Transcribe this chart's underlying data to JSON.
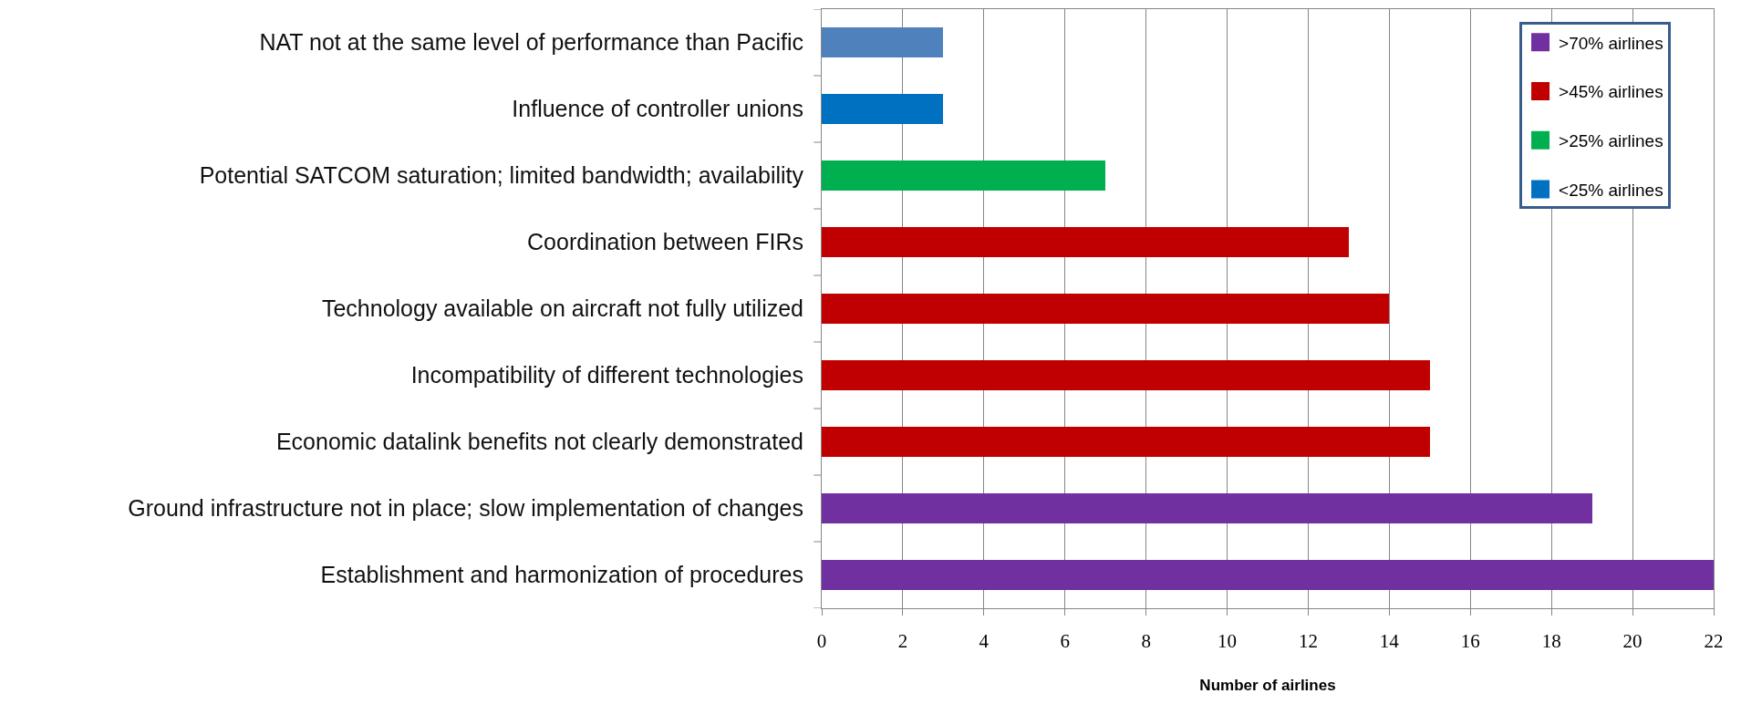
{
  "chart_data": {
    "type": "bar",
    "orientation": "horizontal",
    "stacked": true,
    "categories": [
      "NAT not at the same level of performance than Pacific",
      "Influence of controller unions",
      "Potential SATCOM saturation; limited bandwidth; availability",
      "Coordination between FIRs",
      "Technology available on aircraft not fully utilized",
      "Incompatibility of different technologies",
      "Economic datalink benefits not clearly demonstrated",
      "Ground infrastructure not in place; slow implementation of changes",
      "Establishment and harmonization of procedures"
    ],
    "series": [
      {
        "name": ">70% airlines",
        "color": "#7030a0",
        "values": [
          null,
          null,
          null,
          null,
          null,
          null,
          null,
          19,
          22
        ]
      },
      {
        "name": ">45% airlines",
        "color": "#c00000",
        "values": [
          null,
          null,
          null,
          13,
          14,
          15,
          15,
          null,
          null
        ]
      },
      {
        "name": ">25% airlines",
        "color": "#00b050",
        "values": [
          null,
          null,
          7,
          null,
          null,
          null,
          null,
          null,
          null
        ]
      },
      {
        "name": "<25% airlines",
        "color": "#0070c0",
        "colors": [
          "#4f81bd",
          "#0070c0",
          null,
          null,
          null,
          null,
          null,
          null,
          null
        ],
        "values": [
          3,
          3,
          null,
          null,
          null,
          null,
          null,
          null,
          null
        ]
      }
    ],
    "xlabel": "Number of airlines",
    "xlim": [
      0,
      22
    ],
    "xticks": [
      0,
      2,
      4,
      6,
      8,
      10,
      12,
      14,
      16,
      18,
      20,
      22
    ],
    "grid": "x",
    "legend": "top right"
  }
}
